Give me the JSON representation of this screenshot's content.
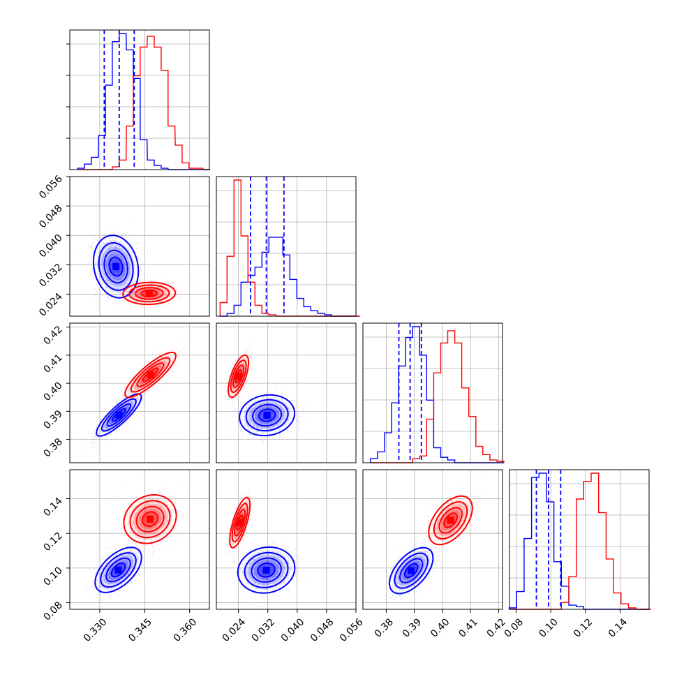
{
  "chart_data": {
    "type": "corner",
    "grid": true,
    "series": [
      {
        "name": "",
        "color": "#0000ff"
      },
      {
        "name": "",
        "color": "#ff0000"
      }
    ],
    "parameters": [
      {
        "range": [
          0.32,
          0.3666
        ],
        "ticks": [
          0.33,
          0.345,
          0.36
        ],
        "tick_labels": [
          "0.330",
          "0.345",
          "0.360"
        ],
        "quantiles_blue": [
          0.3315,
          0.3365,
          0.3415
        ]
      },
      {
        "range": [
          0.018,
          0.056
        ],
        "ticks": [
          0.024,
          0.032,
          0.04,
          0.048,
          0.056
        ],
        "tick_labels": [
          "0.024",
          "0.032",
          "0.040",
          "0.048",
          "0.056"
        ],
        "quantiles_blue": [
          0.0273,
          0.0316,
          0.0364
        ]
      },
      {
        "range": [
          0.3717,
          0.4214
        ],
        "ticks": [
          0.38,
          0.39,
          0.4,
          0.41,
          0.42
        ],
        "tick_labels": [
          "0.38",
          "0.39",
          "0.40",
          "0.41",
          "0.42"
        ],
        "quantiles_blue": [
          0.3845,
          0.3885,
          0.3925
        ]
      },
      {
        "range": [
          0.0762,
          0.1567
        ],
        "ticks": [
          0.08,
          0.1,
          0.12,
          0.14
        ],
        "tick_labels": [
          "0.08",
          "0.10",
          "0.12",
          "0.14"
        ],
        "quantiles_blue": [
          0.0917,
          0.0987,
          0.1057
        ]
      }
    ],
    "histograms": [
      {
        "bins": [
          0.3226,
          0.3249,
          0.3272,
          0.3296,
          0.3319,
          0.3342,
          0.3365,
          0.3389,
          0.3412,
          0.3435,
          0.3459,
          0.3482,
          0.3505,
          0.3528,
          0.3552,
          0.3575,
          0.3598,
          0.3621,
          0.3645
        ],
        "blue": [
          0.01,
          0.04,
          0.09,
          0.25,
          0.62,
          0.94,
          1.0,
          0.88,
          0.67,
          0.22,
          0.07,
          0.03,
          0.01,
          0,
          0,
          0,
          0,
          0,
          0
        ],
        "red": [
          0,
          0,
          0,
          0,
          0,
          0.02,
          0.07,
          0.32,
          0.69,
          0.9,
          0.98,
          0.9,
          0.73,
          0.32,
          0.18,
          0.05,
          0.01,
          0.01,
          0
        ]
      },
      {
        "bins": [
          0.019,
          0.0209,
          0.0228,
          0.0247,
          0.0266,
          0.0285,
          0.0304,
          0.0323,
          0.0342,
          0.0361,
          0.038,
          0.0399,
          0.0418,
          0.0437,
          0.0456,
          0.0475,
          0.0494,
          0.0513,
          0.0532,
          0.0551
        ],
        "blue": [
          0,
          0.02,
          0.08,
          0.25,
          0.3,
          0.36,
          0.47,
          0.58,
          0.58,
          0.45,
          0.27,
          0.13,
          0.07,
          0.04,
          0.02,
          0.01,
          0,
          0,
          0,
          0
        ],
        "red": [
          0.1,
          0.44,
          1.0,
          0.59,
          0.25,
          0.08,
          0.02,
          0.01,
          0,
          0,
          0,
          0,
          0,
          0,
          0,
          0,
          0,
          0,
          0,
          0
        ]
      },
      {
        "bins": [
          0.3744,
          0.3769,
          0.3794,
          0.3819,
          0.3844,
          0.3869,
          0.3894,
          0.3919,
          0.3944,
          0.3969,
          0.3994,
          0.4019,
          0.4044,
          0.4069,
          0.4094,
          0.4119,
          0.4144,
          0.4169,
          0.4194
        ],
        "blue": [
          0.03,
          0.08,
          0.22,
          0.44,
          0.71,
          0.92,
          1.0,
          0.79,
          0.46,
          0.11,
          0.04,
          0.02,
          0,
          0,
          0,
          0,
          0,
          0,
          0
        ],
        "red": [
          0,
          0,
          0,
          0,
          0,
          0,
          0.03,
          0.05,
          0.32,
          0.66,
          0.88,
          0.97,
          0.88,
          0.55,
          0.34,
          0.12,
          0.06,
          0.02,
          0.01
        ]
      },
      {
        "bins": [
          0.076,
          0.0803,
          0.0846,
          0.0889,
          0.0932,
          0.0975,
          0.1018,
          0.1061,
          0.1104,
          0.1147,
          0.119,
          0.1233,
          0.1276,
          0.1319,
          0.1362,
          0.1405,
          0.1448,
          0.1491,
          0.1534
        ],
        "blue": [
          0.01,
          0.13,
          0.52,
          0.97,
          1.0,
          0.79,
          0.35,
          0.17,
          0.03,
          0.02,
          0,
          0,
          0,
          0,
          0,
          0,
          0,
          0,
          0
        ],
        "red": [
          0,
          0,
          0,
          0,
          0,
          0,
          0,
          0.05,
          0.24,
          0.81,
          0.94,
          1.0,
          0.71,
          0.37,
          0.12,
          0.04,
          0.01,
          0,
          0
        ]
      }
    ],
    "blobs": [
      {
        "xi": 0,
        "yi": 1,
        "blue": {
          "mx": 0.3354,
          "my": 0.0315,
          "sx": 0.003,
          "sy": 0.0034,
          "r": -0.15
        },
        "red": {
          "mx": 0.3465,
          "my": 0.0242,
          "sx": 0.0035,
          "sy": 0.0012,
          "r": 0.05
        }
      },
      {
        "xi": 0,
        "yi": 2,
        "blue": {
          "mx": 0.3364,
          "my": 0.3887,
          "sx": 0.003,
          "sy": 0.003,
          "r": 0.85
        },
        "red": {
          "mx": 0.3469,
          "my": 0.403,
          "sx": 0.0034,
          "sy": 0.0032,
          "r": 0.85
        }
      },
      {
        "xi": 0,
        "yi": 3,
        "blue": {
          "mx": 0.3362,
          "my": 0.0989,
          "sx": 0.0031,
          "sy": 0.0052,
          "r": 0.55
        },
        "red": {
          "mx": 0.3468,
          "my": 0.1282,
          "sx": 0.0035,
          "sy": 0.0056,
          "r": 0.15
        }
      },
      {
        "xi": 1,
        "yi": 2,
        "blue": {
          "mx": 0.0318,
          "my": 0.3886,
          "sx": 0.003,
          "sy": 0.0029,
          "r": 0.1
        },
        "red": {
          "mx": 0.024,
          "my": 0.4025,
          "sx": 0.0011,
          "sy": 0.003,
          "r": 0.65
        }
      },
      {
        "xi": 1,
        "yi": 3,
        "blue": {
          "mx": 0.0316,
          "my": 0.0988,
          "sx": 0.0031,
          "sy": 0.0053,
          "r": 0.1
        },
        "red": {
          "mx": 0.0244,
          "my": 0.1262,
          "sx": 0.0011,
          "sy": 0.0058,
          "r": 0.7
        }
      },
      {
        "xi": 2,
        "yi": 3,
        "blue": {
          "mx": 0.3889,
          "my": 0.0985,
          "sx": 0.0031,
          "sy": 0.0053,
          "r": 0.55
        },
        "red": {
          "mx": 0.4029,
          "my": 0.1275,
          "sx": 0.0031,
          "sy": 0.0056,
          "r": 0.5
        }
      }
    ]
  }
}
